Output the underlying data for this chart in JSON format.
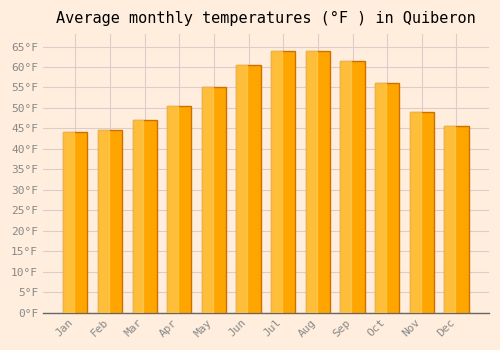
{
  "title": "Average monthly temperatures (°F ) in Quiberon",
  "months": [
    "Jan",
    "Feb",
    "Mar",
    "Apr",
    "May",
    "Jun",
    "Jul",
    "Aug",
    "Sep",
    "Oct",
    "Nov",
    "Dec"
  ],
  "values": [
    44,
    44.5,
    47,
    50.5,
    55,
    60.5,
    64,
    64,
    61.5,
    56,
    49,
    45.5
  ],
  "bar_color": "#FFA500",
  "bar_edge_color": "#CC7000",
  "bar_linewidth": 1.0,
  "ylim": [
    0,
    68
  ],
  "yticks": [
    0,
    5,
    10,
    15,
    20,
    25,
    30,
    35,
    40,
    45,
    50,
    55,
    60,
    65
  ],
  "background_color": "#FFEEDD",
  "plot_bg_color": "#FFEEDD",
  "grid_color": "#DDCCCC",
  "title_fontsize": 11,
  "tick_fontsize": 8,
  "font_family": "monospace",
  "bar_width": 0.7
}
